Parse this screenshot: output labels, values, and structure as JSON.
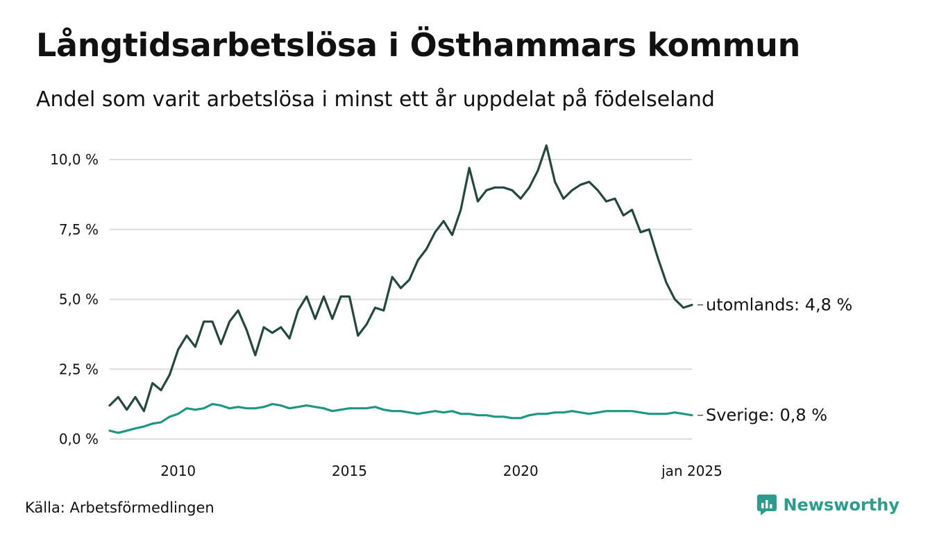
{
  "header": {
    "title": "Långtidsarbetslösa i Östhammars kommun",
    "subtitle": "Andel som varit arbetslösa i minst ett år uppdelat på födelseland"
  },
  "footer": {
    "source": "Källa: Arbetsförmedlingen",
    "brand": "Newsworthy",
    "brand_icon": "newsworthy-logo-icon"
  },
  "colors": {
    "utomlands": "#22483f",
    "sverige": "#1e9684",
    "grid": "#dcdcdc",
    "brand": "#2a9d8f"
  },
  "chart_data": {
    "type": "line",
    "title": "Långtidsarbetslösa i Östhammars kommun",
    "subtitle": "Andel som varit arbetslösa i minst ett år uppdelat på födelseland",
    "ylim": [
      0,
      10.5
    ],
    "y_ticks": [
      0,
      2.5,
      5,
      7.5,
      10
    ],
    "y_tick_labels": [
      "0,0 %",
      "2,5 %",
      "5,0 %",
      "7,5 %",
      "10,0 %"
    ],
    "x_ticks": [
      2010,
      2015,
      2020,
      2025
    ],
    "x_tick_labels": [
      "2010",
      "2015",
      "2020",
      "jan 2025"
    ],
    "xlim": [
      2008.0,
      2025.0
    ],
    "grid": "horizontal",
    "series": [
      {
        "name": "utomlands",
        "end_label": "utomlands: 4,8 %",
        "x": [
          2008.0,
          2008.25,
          2008.5,
          2008.75,
          2009.0,
          2009.25,
          2009.5,
          2009.75,
          2010.0,
          2010.25,
          2010.5,
          2010.75,
          2011.0,
          2011.25,
          2011.5,
          2011.75,
          2012.0,
          2012.25,
          2012.5,
          2012.75,
          2013.0,
          2013.25,
          2013.5,
          2013.75,
          2014.0,
          2014.25,
          2014.5,
          2014.75,
          2015.0,
          2015.25,
          2015.5,
          2015.75,
          2016.0,
          2016.25,
          2016.5,
          2016.75,
          2017.0,
          2017.25,
          2017.5,
          2017.75,
          2018.0,
          2018.25,
          2018.5,
          2018.75,
          2019.0,
          2019.25,
          2019.5,
          2019.75,
          2020.0,
          2020.25,
          2020.5,
          2020.75,
          2021.0,
          2021.25,
          2021.5,
          2021.75,
          2022.0,
          2022.25,
          2022.5,
          2022.75,
          2023.0,
          2023.25,
          2023.5,
          2023.75,
          2024.0,
          2024.25,
          2024.5,
          2024.75,
          2025.0
        ],
        "values": [
          1.2,
          1.5,
          1.05,
          1.5,
          1.0,
          2.0,
          1.75,
          2.3,
          3.2,
          3.7,
          3.3,
          4.2,
          4.2,
          3.4,
          4.2,
          4.6,
          3.9,
          3.0,
          4.0,
          3.8,
          4.0,
          3.6,
          4.6,
          5.1,
          4.3,
          5.1,
          4.3,
          5.1,
          5.1,
          3.7,
          4.1,
          4.7,
          4.6,
          5.8,
          5.4,
          5.7,
          6.4,
          6.8,
          7.4,
          7.8,
          7.3,
          8.2,
          9.7,
          8.5,
          8.9,
          9.0,
          9.0,
          8.9,
          8.6,
          9.0,
          9.6,
          10.5,
          9.2,
          8.6,
          8.9,
          9.1,
          9.2,
          8.9,
          8.5,
          8.6,
          8.0,
          8.2,
          7.4,
          7.5,
          6.5,
          5.6,
          5.0,
          4.7,
          4.8
        ]
      },
      {
        "name": "Sverige",
        "end_label": "Sverige: 0,8 %",
        "x": [
          2008.0,
          2008.25,
          2008.5,
          2008.75,
          2009.0,
          2009.25,
          2009.5,
          2009.75,
          2010.0,
          2010.25,
          2010.5,
          2010.75,
          2011.0,
          2011.25,
          2011.5,
          2011.75,
          2012.0,
          2012.25,
          2012.5,
          2012.75,
          2013.0,
          2013.25,
          2013.5,
          2013.75,
          2014.0,
          2014.25,
          2014.5,
          2014.75,
          2015.0,
          2015.25,
          2015.5,
          2015.75,
          2016.0,
          2016.25,
          2016.5,
          2016.75,
          2017.0,
          2017.25,
          2017.5,
          2017.75,
          2018.0,
          2018.25,
          2018.5,
          2018.75,
          2019.0,
          2019.25,
          2019.5,
          2019.75,
          2020.0,
          2020.25,
          2020.5,
          2020.75,
          2021.0,
          2021.25,
          2021.5,
          2021.75,
          2022.0,
          2022.25,
          2022.5,
          2022.75,
          2023.0,
          2023.25,
          2023.5,
          2023.75,
          2024.0,
          2024.25,
          2024.5,
          2024.75,
          2025.0
        ],
        "values": [
          0.3,
          0.22,
          0.3,
          0.38,
          0.45,
          0.55,
          0.6,
          0.8,
          0.9,
          1.1,
          1.05,
          1.1,
          1.25,
          1.2,
          1.1,
          1.15,
          1.1,
          1.1,
          1.15,
          1.25,
          1.2,
          1.1,
          1.15,
          1.2,
          1.15,
          1.1,
          1.0,
          1.05,
          1.1,
          1.1,
          1.1,
          1.15,
          1.05,
          1.0,
          1.0,
          0.95,
          0.9,
          0.95,
          1.0,
          0.95,
          1.0,
          0.9,
          0.9,
          0.85,
          0.85,
          0.8,
          0.8,
          0.75,
          0.75,
          0.85,
          0.9,
          0.9,
          0.95,
          0.95,
          1.0,
          0.95,
          0.9,
          0.95,
          1.0,
          1.0,
          1.0,
          1.0,
          0.95,
          0.9,
          0.9,
          0.9,
          0.95,
          0.9,
          0.85
        ]
      }
    ]
  }
}
